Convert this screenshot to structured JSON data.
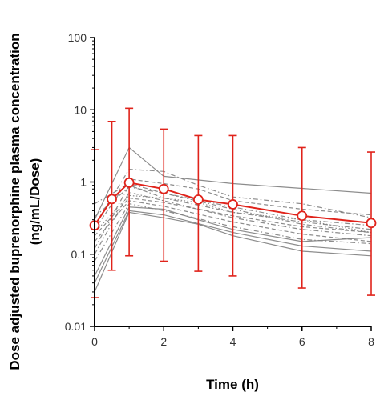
{
  "chart_data": {
    "type": "line",
    "title": "",
    "xlabel": "Time (h)",
    "ylabel_line1": "Dose adjusted buprenorphine plasma concentration",
    "ylabel_line2": "(ng/mL/Dose)",
    "xlim": [
      0,
      8
    ],
    "ylim": [
      0.01,
      100
    ],
    "yscale": "log",
    "grid": false,
    "legend": "none",
    "x_ticks": [
      0,
      2,
      4,
      6,
      8
    ],
    "x_tick_labels": [
      "0",
      "2",
      "4",
      "6",
      "8"
    ],
    "y_ticks": [
      0.01,
      0.1,
      1,
      10,
      100
    ],
    "y_tick_labels": [
      "0.01",
      "0.1",
      "1",
      "10",
      "100"
    ],
    "colors": {
      "mean": "#e0231b",
      "individual": "#7f7f7f"
    },
    "mean_series": {
      "x": [
        0,
        0.5,
        1,
        2,
        3,
        4,
        6,
        8
      ],
      "y": [
        0.25,
        0.58,
        0.98,
        0.8,
        0.57,
        0.49,
        0.34,
        0.27
      ],
      "error_low": [
        0.025,
        0.06,
        0.095,
        0.08,
        0.058,
        0.05,
        0.034,
        0.027
      ],
      "error_high": [
        2.8,
        6.9,
        10.5,
        5.4,
        4.4,
        4.4,
        3.0,
        2.6
      ]
    },
    "individual_series": [
      {
        "x": [
          0,
          1,
          2,
          4,
          8
        ],
        "y": [
          0.3,
          3.0,
          1.2,
          0.95,
          0.7
        ],
        "style": "solid"
      },
      {
        "x": [
          0,
          1,
          2,
          3,
          4,
          6,
          8
        ],
        "y": [
          0.25,
          1.5,
          1.4,
          0.9,
          0.62,
          0.5,
          0.32
        ],
        "style": "dashdot"
      },
      {
        "x": [
          0,
          1,
          2,
          4,
          6,
          8
        ],
        "y": [
          0.12,
          0.9,
          0.6,
          0.38,
          0.28,
          0.22
        ],
        "style": "dashdot"
      },
      {
        "x": [
          0,
          1,
          2,
          3,
          4,
          6,
          8
        ],
        "y": [
          0.22,
          1.1,
          0.95,
          0.8,
          0.55,
          0.42,
          0.35
        ],
        "style": "dashed"
      },
      {
        "x": [
          0,
          1,
          2,
          4,
          6,
          8
        ],
        "y": [
          0.5,
          0.95,
          0.7,
          0.45,
          0.3,
          0.25
        ],
        "style": "dashdot"
      },
      {
        "x": [
          0,
          1,
          2,
          4,
          6,
          8
        ],
        "y": [
          0.1,
          0.72,
          0.55,
          0.32,
          0.22,
          0.18
        ],
        "style": "dashdot"
      },
      {
        "x": [
          0,
          1,
          2,
          3,
          4,
          6,
          8
        ],
        "y": [
          0.2,
          0.65,
          0.6,
          0.52,
          0.38,
          0.3,
          0.2
        ],
        "style": "dotted"
      },
      {
        "x": [
          0,
          1,
          2,
          4,
          6,
          8
        ],
        "y": [
          0.15,
          0.55,
          0.46,
          0.28,
          0.19,
          0.15
        ],
        "style": "dashed"
      },
      {
        "x": [
          0,
          1,
          2,
          4,
          6,
          8
        ],
        "y": [
          0.08,
          0.5,
          0.4,
          0.24,
          0.16,
          0.14
        ],
        "style": "dashdot"
      },
      {
        "x": [
          0,
          1,
          2,
          3,
          4,
          6,
          8
        ],
        "y": [
          0.05,
          0.45,
          0.42,
          0.3,
          0.22,
          0.15,
          0.17
        ],
        "style": "solid"
      },
      {
        "x": [
          0,
          1,
          2,
          4,
          6,
          8
        ],
        "y": [
          0.04,
          0.4,
          0.35,
          0.2,
          0.13,
          0.11
        ],
        "style": "solid"
      },
      {
        "x": [
          0,
          1,
          2,
          3,
          4,
          6,
          8
        ],
        "y": [
          0.03,
          0.38,
          0.32,
          0.26,
          0.18,
          0.11,
          0.095
        ],
        "style": "solid"
      },
      {
        "x": [
          0,
          1,
          2,
          4,
          6,
          8
        ],
        "y": [
          0.33,
          0.85,
          0.7,
          0.42,
          0.26,
          0.2
        ],
        "style": "dashdot"
      },
      {
        "x": [
          0,
          1,
          2,
          4,
          6,
          8
        ],
        "y": [
          0.18,
          0.6,
          0.52,
          0.34,
          0.24,
          0.2
        ],
        "style": "dashed"
      }
    ]
  }
}
